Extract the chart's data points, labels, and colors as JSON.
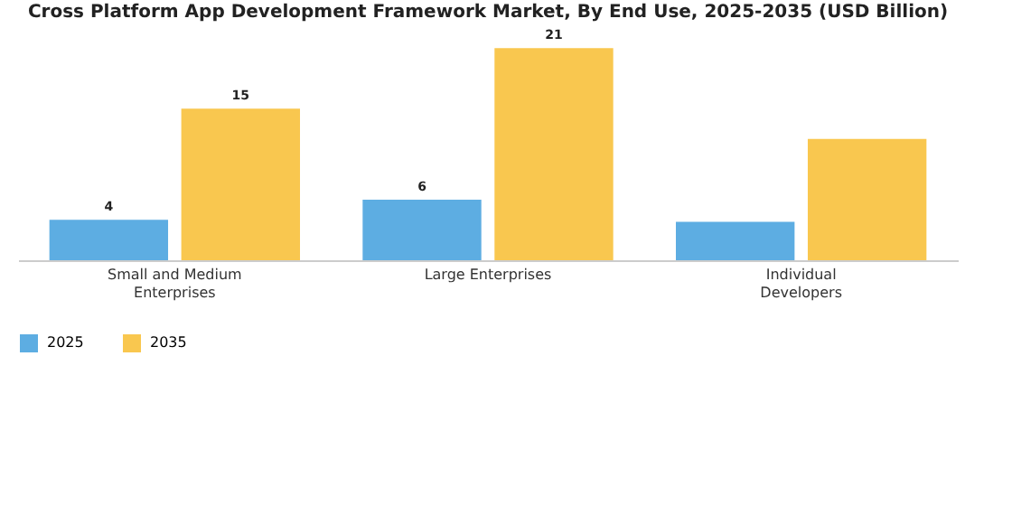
{
  "chart_data": {
    "type": "bar",
    "title": "Cross Platform App Development Framework Market, By End Use, 2025-2035 (USD Billion)",
    "categories": [
      "Small and Medium Enterprises",
      "Large Enterprises",
      "Individual Developers"
    ],
    "series": [
      {
        "name": "2025",
        "color": "#5dade2",
        "values": [
          4,
          6,
          3.8
        ],
        "value_labels": [
          "4",
          "6",
          null
        ]
      },
      {
        "name": "2035",
        "color": "#f9c74f",
        "values": [
          15,
          21,
          12
        ],
        "value_labels": [
          "15",
          "21",
          null
        ]
      }
    ],
    "legend": "bottom",
    "grid": false
  }
}
